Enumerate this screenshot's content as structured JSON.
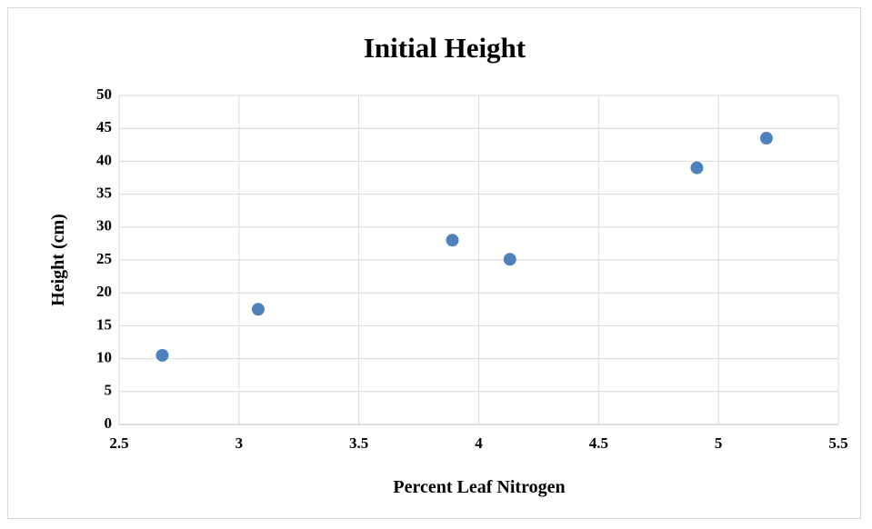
{
  "chart_data": {
    "type": "scatter",
    "title": "Initial Height",
    "x_label": "Percent Leaf Nitrogen",
    "y_label": "Height (cm)",
    "x": [
      2.68,
      3.08,
      3.89,
      4.13,
      4.91,
      5.2
    ],
    "values": [
      10.5,
      17.5,
      28.0,
      25.1,
      39.0,
      43.5
    ],
    "color": "#4f81bd",
    "xlim": [
      2.5,
      5.5
    ],
    "xticks": [
      2.5,
      3,
      3.5,
      4,
      4.5,
      5,
      5.5
    ],
    "ylim": [
      0,
      50
    ],
    "yticks": [
      0,
      5,
      10,
      15,
      20,
      25,
      30,
      35,
      40,
      45,
      50
    ],
    "grid": true
  }
}
